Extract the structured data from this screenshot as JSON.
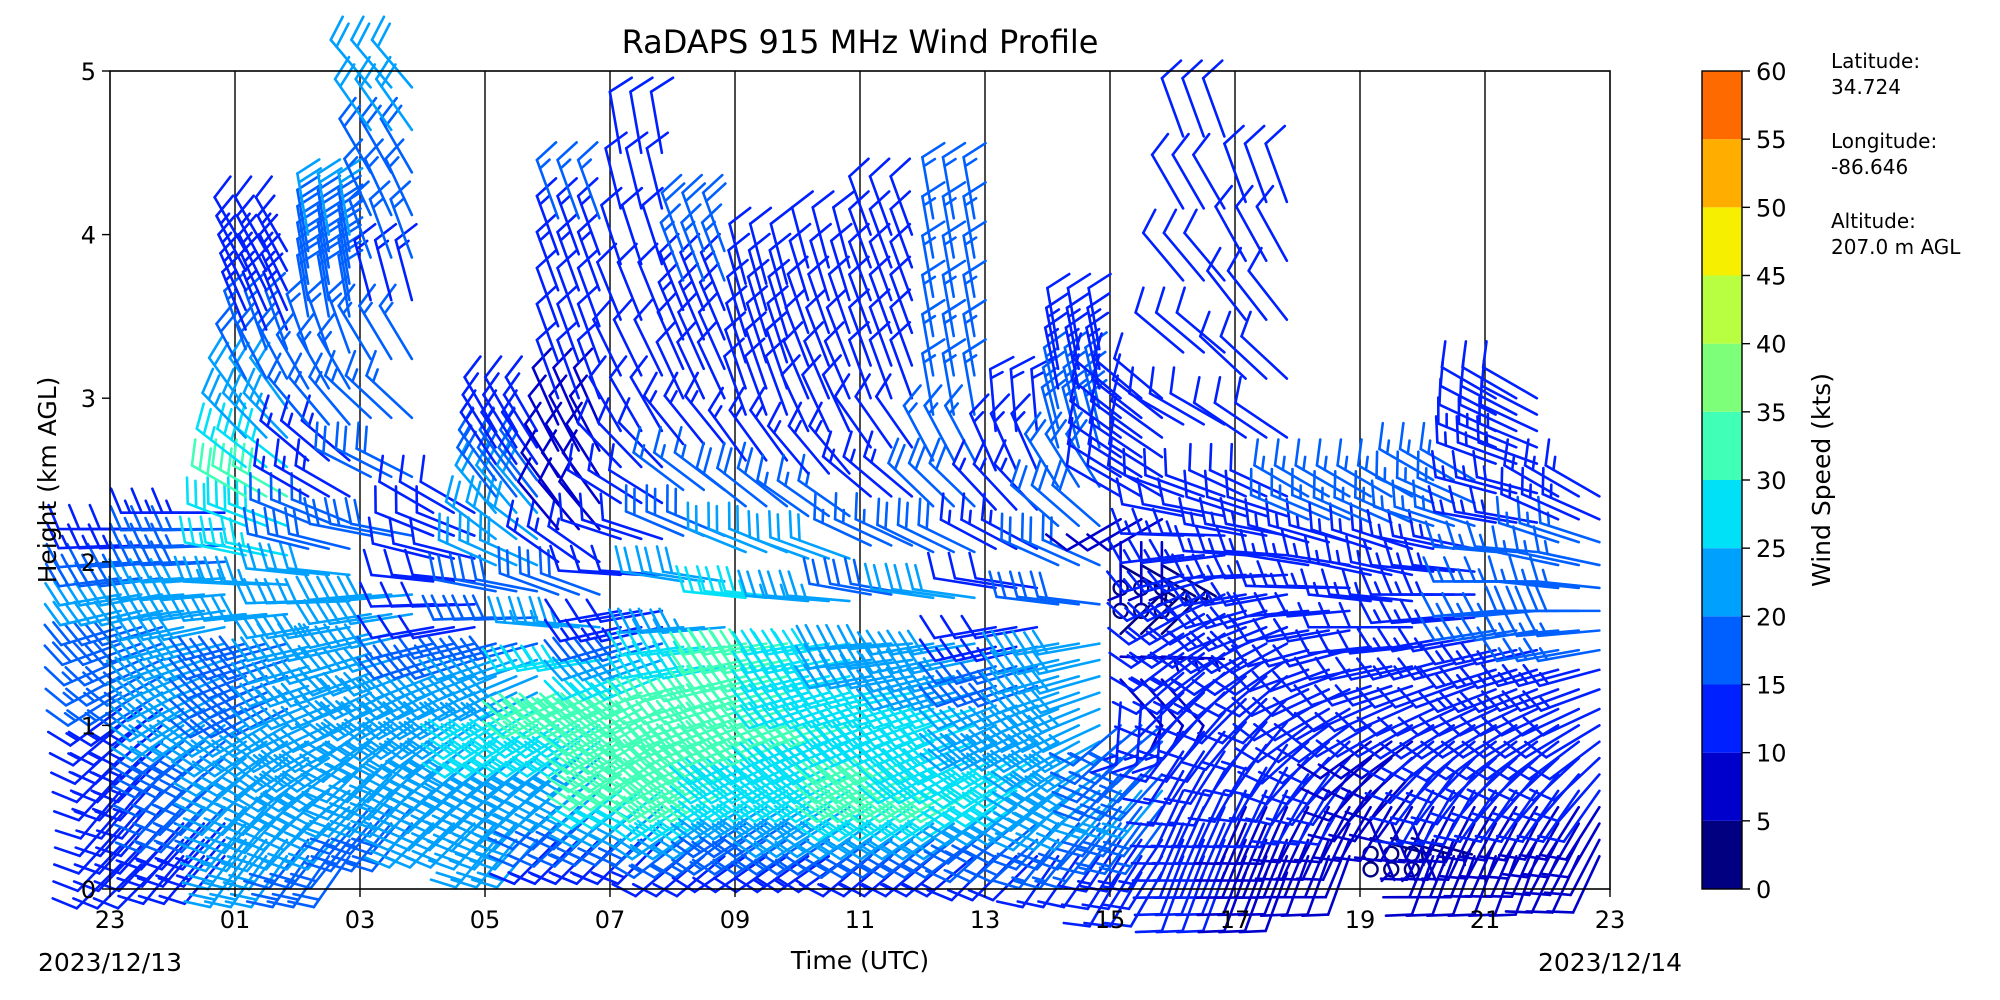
{
  "chart_data": {
    "type": "wind_barb",
    "title": "RaDAPS 915 MHz Wind Profile",
    "xlabel": "Time (UTC)",
    "ylabel": "Height (km AGL)",
    "x_ticks": [
      "23",
      "01",
      "03",
      "05",
      "07",
      "09",
      "11",
      "13",
      "15",
      "17",
      "19",
      "21",
      "23"
    ],
    "x_tick_hours": [
      0,
      2,
      4,
      6,
      8,
      10,
      12,
      14,
      16,
      18,
      20,
      22,
      24
    ],
    "xlim_hours": [
      0,
      24
    ],
    "start_date": "2023/12/13",
    "end_date": "2023/12/14",
    "y_ticks": [
      0,
      1,
      2,
      3,
      4,
      5
    ],
    "ylim": [
      0,
      5
    ],
    "grid": "vertical lines every hour",
    "colorbar": {
      "label": "Wind Speed (kts)",
      "ticks": [
        0,
        5,
        10,
        15,
        20,
        25,
        30,
        35,
        40,
        45,
        50,
        55,
        60
      ],
      "range": [
        0,
        60
      ],
      "colors": [
        "#000080",
        "#0000cd",
        "#0020ff",
        "#0060ff",
        "#00a0ff",
        "#00e0f6",
        "#40ffb7",
        "#7dff7a",
        "#b7ff40",
        "#f6ef00",
        "#ffae00",
        "#ff6a00",
        "#f02800",
        "#b80000",
        "#800000"
      ]
    },
    "site": {
      "latitude_label": "Latitude:",
      "latitude": "34.724",
      "longitude_label": "Longitude:",
      "longitude": "-86.646",
      "altitude_label": "Altitude:",
      "altitude": "207.0 m AGL"
    },
    "profiles": [
      {
        "hour": 0.5,
        "levels": [
          [
            0.15,
            225,
            10
          ],
          [
            0.6,
            220,
            12
          ],
          [
            1.0,
            230,
            14
          ],
          [
            1.5,
            250,
            18
          ],
          [
            1.8,
            260,
            22
          ],
          [
            2.2,
            270,
            12
          ]
        ]
      },
      {
        "hour": 1.5,
        "levels": [
          [
            0.2,
            220,
            12
          ],
          [
            0.6,
            225,
            16
          ],
          [
            1.0,
            235,
            20
          ],
          [
            1.5,
            255,
            20
          ],
          [
            1.8,
            265,
            22
          ],
          [
            2.3,
            270,
            14
          ]
        ]
      },
      {
        "hour": 2.5,
        "levels": [
          [
            0.2,
            215,
            20
          ],
          [
            0.6,
            225,
            22
          ],
          [
            1.0,
            240,
            20
          ],
          [
            1.5,
            255,
            18
          ],
          [
            2.4,
            300,
            30
          ],
          [
            3.3,
            340,
            15
          ],
          [
            3.9,
            330,
            12
          ]
        ]
      },
      {
        "hour": 3.5,
        "levels": [
          [
            0.2,
            215,
            18
          ],
          [
            0.6,
            230,
            24
          ],
          [
            1.0,
            245,
            22
          ],
          [
            1.6,
            260,
            24
          ],
          [
            2.4,
            300,
            14
          ],
          [
            3.5,
            350,
            18
          ],
          [
            4.0,
            350,
            20
          ]
        ]
      },
      {
        "hour": 4.5,
        "levels": [
          [
            0.4,
            220,
            18
          ],
          [
            0.8,
            225,
            22
          ],
          [
            1.2,
            245,
            24
          ],
          [
            1.8,
            265,
            20
          ],
          [
            3.6,
            345,
            14
          ],
          [
            4.9,
            320,
            22
          ]
        ]
      },
      {
        "hour": 5.5,
        "levels": [
          [
            0.4,
            225,
            20
          ],
          [
            0.8,
            230,
            24
          ],
          [
            1.2,
            245,
            24
          ],
          [
            1.6,
            260,
            12
          ],
          [
            2.3,
            300,
            10
          ]
        ]
      },
      {
        "hour": 6.5,
        "levels": [
          [
            0.3,
            220,
            22
          ],
          [
            0.7,
            230,
            24
          ],
          [
            1.1,
            240,
            26
          ],
          [
            1.5,
            255,
            18
          ],
          [
            2.3,
            320,
            22
          ],
          [
            2.8,
            330,
            10
          ]
        ]
      },
      {
        "hour": 7.5,
        "levels": [
          [
            0.3,
            225,
            14
          ],
          [
            0.7,
            230,
            22
          ],
          [
            1.2,
            245,
            34
          ],
          [
            2.2,
            320,
            8
          ],
          [
            3.0,
            340,
            10
          ],
          [
            4.1,
            340,
            16
          ]
        ]
      },
      {
        "hour": 8.5,
        "levels": [
          [
            0.3,
            225,
            14
          ],
          [
            0.7,
            235,
            30
          ],
          [
            1.2,
            245,
            30
          ],
          [
            1.7,
            260,
            10
          ],
          [
            2.8,
            330,
            10
          ],
          [
            4.5,
            350,
            12
          ]
        ]
      },
      {
        "hour": 9.5,
        "levels": [
          [
            0.2,
            230,
            12
          ],
          [
            0.6,
            240,
            30
          ],
          [
            1.0,
            250,
            34
          ],
          [
            1.6,
            265,
            24
          ],
          [
            3.0,
            335,
            10
          ],
          [
            3.9,
            340,
            18
          ]
        ]
      },
      {
        "hour": 10.5,
        "levels": [
          [
            0.2,
            235,
            12
          ],
          [
            0.6,
            240,
            26
          ],
          [
            1.0,
            250,
            32
          ],
          [
            1.5,
            260,
            30
          ],
          [
            2.9,
            340,
            10
          ],
          [
            3.7,
            345,
            10
          ]
        ]
      },
      {
        "hour": 11.5,
        "levels": [
          [
            0.2,
            235,
            14
          ],
          [
            0.6,
            240,
            28
          ],
          [
            1.0,
            250,
            30
          ],
          [
            1.5,
            260,
            28
          ],
          [
            2.8,
            335,
            10
          ],
          [
            3.8,
            345,
            12
          ]
        ]
      },
      {
        "hour": 12.5,
        "levels": [
          [
            0.2,
            230,
            14
          ],
          [
            0.6,
            240,
            32
          ],
          [
            1.0,
            250,
            28
          ],
          [
            1.5,
            265,
            22
          ],
          [
            3.0,
            340,
            10
          ],
          [
            4.0,
            340,
            12
          ]
        ]
      },
      {
        "hour": 13.5,
        "levels": [
          [
            0.2,
            230,
            14
          ],
          [
            0.6,
            240,
            30
          ],
          [
            1.0,
            250,
            26
          ],
          [
            1.5,
            260,
            22
          ],
          [
            2.9,
            350,
            16
          ],
          [
            4.1,
            350,
            16
          ]
        ]
      },
      {
        "hour": 14.5,
        "levels": [
          [
            0.2,
            225,
            12
          ],
          [
            0.6,
            235,
            26
          ],
          [
            1.0,
            245,
            24
          ],
          [
            1.6,
            260,
            12
          ],
          [
            2.8,
            355,
            14
          ]
        ]
      },
      {
        "hour": 15.5,
        "levels": [
          [
            0.2,
            215,
            12
          ],
          [
            0.6,
            230,
            24
          ],
          [
            1.0,
            245,
            24
          ],
          [
            1.5,
            260,
            20
          ],
          [
            2.7,
            345,
            18
          ],
          [
            3.3,
            350,
            12
          ]
        ]
      },
      {
        "hour": 16.5,
        "levels": [
          [
            0.1,
            210,
            10
          ],
          [
            0.6,
            220,
            20
          ],
          [
            1.0,
            230,
            16
          ],
          [
            1.7,
            0,
            0
          ],
          [
            2.4,
            300,
            12
          ],
          [
            3.0,
            310,
            10
          ]
        ]
      },
      {
        "hour": 17.5,
        "levels": [
          [
            0.1,
            200,
            10
          ],
          [
            0.6,
            205,
            10
          ],
          [
            1.2,
            225,
            12
          ],
          [
            1.8,
            245,
            14
          ],
          [
            2.4,
            290,
            12
          ],
          [
            4.6,
            340,
            10
          ]
        ]
      },
      {
        "hour": 18.5,
        "levels": [
          [
            0.1,
            200,
            8
          ],
          [
            0.6,
            205,
            10
          ],
          [
            1.3,
            230,
            12
          ],
          [
            1.8,
            260,
            14
          ],
          [
            2.4,
            295,
            12
          ],
          [
            4.2,
            340,
            10
          ]
        ]
      },
      {
        "hour": 19.5,
        "levels": [
          [
            0.2,
            200,
            8
          ],
          [
            0.6,
            210,
            10
          ],
          [
            1.1,
            240,
            12
          ],
          [
            1.7,
            265,
            12
          ],
          [
            2.4,
            300,
            16
          ]
        ]
      },
      {
        "hour": 20.5,
        "levels": [
          [
            0.12,
            0,
            0
          ],
          [
            0.5,
            210,
            8
          ],
          [
            1.0,
            240,
            10
          ],
          [
            1.6,
            270,
            12
          ],
          [
            2.4,
            300,
            16
          ]
        ]
      },
      {
        "hour": 21.5,
        "levels": [
          [
            0.2,
            200,
            8
          ],
          [
            0.6,
            210,
            10
          ],
          [
            1.1,
            245,
            12
          ],
          [
            1.8,
            270,
            14
          ],
          [
            2.5,
            300,
            16
          ]
        ]
      },
      {
        "hour": 22.5,
        "levels": [
          [
            0.2,
            200,
            8
          ],
          [
            0.6,
            215,
            10
          ],
          [
            1.1,
            245,
            12
          ],
          [
            1.7,
            265,
            16
          ],
          [
            2.6,
            290,
            14
          ],
          [
            3.0,
            300,
            10
          ]
        ]
      },
      {
        "hour": 23.5,
        "levels": [
          [
            0.2,
            205,
            8
          ],
          [
            0.6,
            215,
            10
          ],
          [
            1.1,
            245,
            12
          ],
          [
            1.7,
            270,
            18
          ],
          [
            2.4,
            300,
            14
          ]
        ]
      }
    ]
  }
}
